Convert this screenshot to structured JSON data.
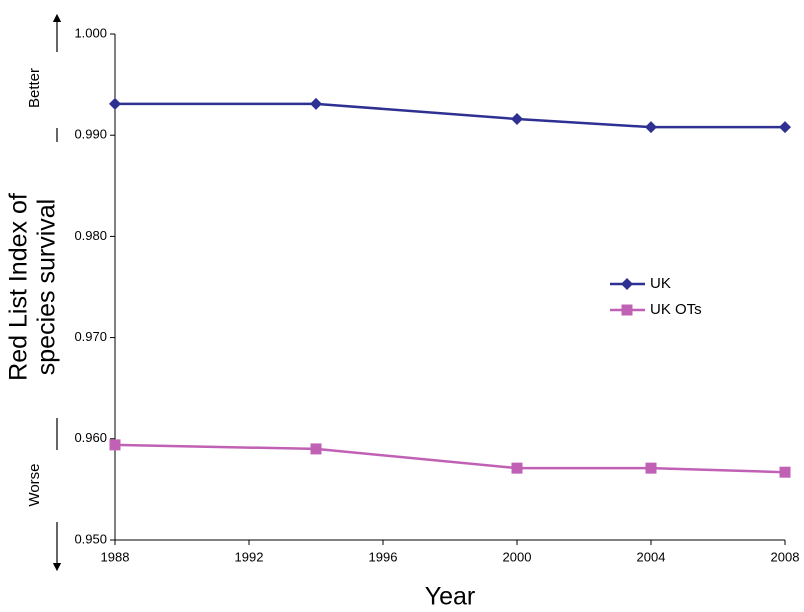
{
  "chart_data": {
    "type": "line",
    "ylabel": [
      "Red List Index of",
      "species survival"
    ],
    "xlabel": "Year",
    "annotations": [
      "Better",
      "Worse"
    ],
    "x": [
      1988,
      1994,
      2000,
      2004,
      2008
    ],
    "series": [
      {
        "name": "UK",
        "color": "#2e3192",
        "marker": "diamond",
        "values": [
          0.9931,
          0.9931,
          0.9916,
          0.9908,
          0.9908
        ]
      },
      {
        "name": "UK OTs",
        "color": "#c061b5",
        "marker": "square",
        "values": [
          0.9594,
          0.959,
          0.9571,
          0.9571,
          0.9567
        ]
      }
    ],
    "xlim": [
      1988,
      2008
    ],
    "xticks": [
      1988,
      1992,
      1996,
      2000,
      2004,
      2008
    ],
    "ylim": [
      0.95,
      1.0
    ],
    "yticks": [
      {
        "value": 0.95,
        "label": "0.950"
      },
      {
        "value": 0.96,
        "label": "0.960"
      },
      {
        "value": 0.97,
        "label": "0.970"
      },
      {
        "value": 0.98,
        "label": "0.980"
      },
      {
        "value": 0.99,
        "label": "0.990"
      },
      {
        "value": 1.0,
        "label": "1.000"
      }
    ],
    "grid": false,
    "legend": "right"
  }
}
